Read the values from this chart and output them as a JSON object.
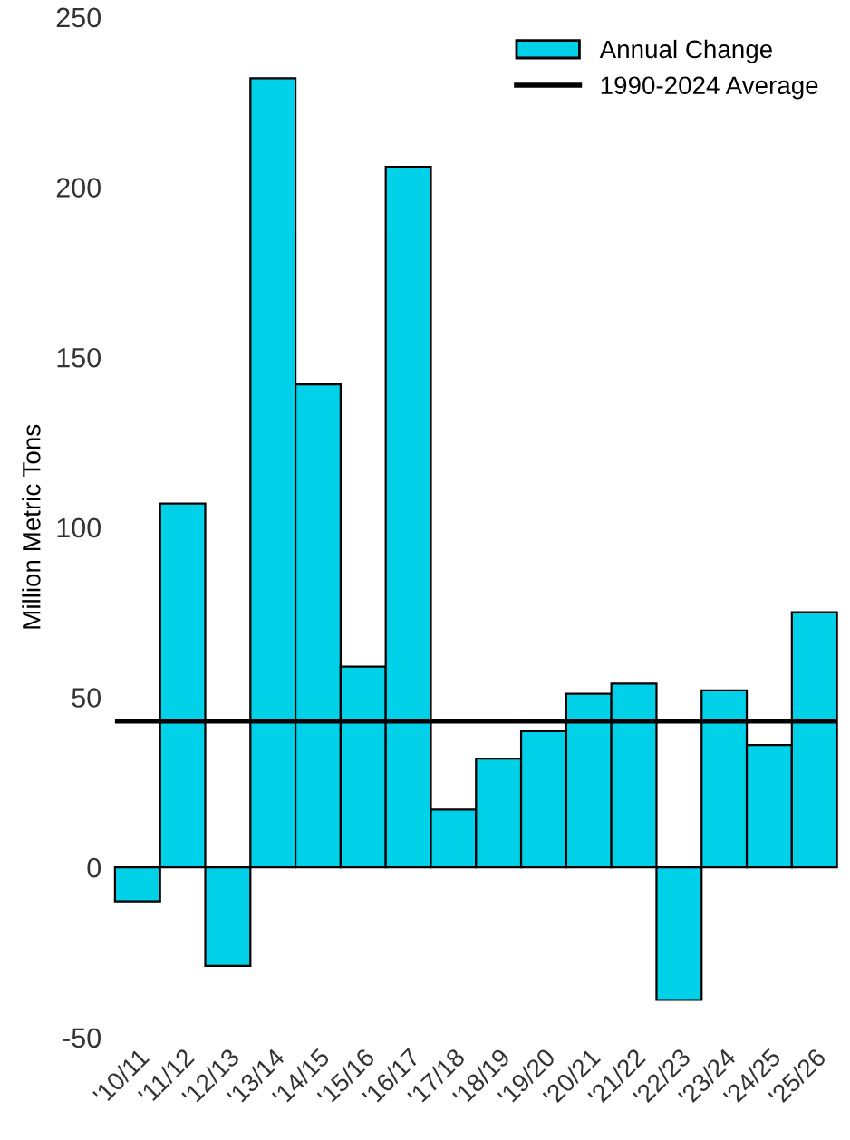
{
  "chart_data": {
    "type": "bar",
    "categories": [
      "'10/11",
      "'11/12",
      "'12/13",
      "'13/14",
      "'14/15",
      "'15/16",
      "'16/17",
      "'17/18",
      "'18/19",
      "'19/20",
      "'20/21",
      "'21/22",
      "'22/23",
      "'23/24",
      "'24/25",
      "'25/26"
    ],
    "series": [
      {
        "name": "Annual Change",
        "color": "#00d0e8",
        "values": [
          -10,
          107,
          -29,
          232,
          142,
          59,
          206,
          17,
          32,
          40,
          51,
          54,
          -39,
          52,
          36,
          75
        ]
      }
    ],
    "ylabel": "Million Metric Tons",
    "ylim": [
      -50,
      250
    ],
    "yticks": [
      -50,
      0,
      50,
      100,
      150,
      200,
      250
    ],
    "ref_lines": [
      {
        "axis": "y",
        "value": 43,
        "label": "1990-2024 Average",
        "color": "#000000"
      }
    ],
    "legend": "top right",
    "grid": false
  }
}
